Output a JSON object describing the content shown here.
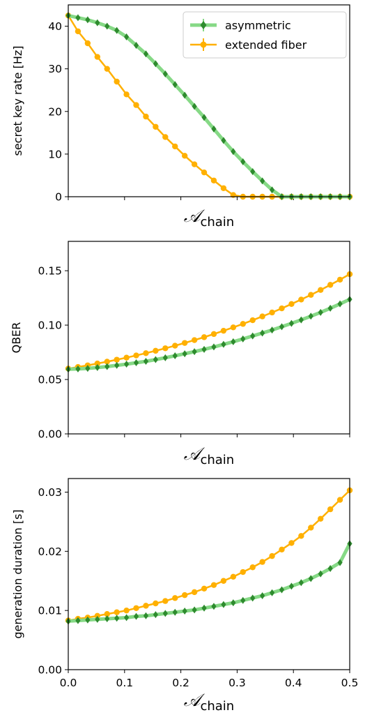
{
  "figure": {
    "colors": {
      "asymmetric_marker": "#2e8b2e",
      "asymmetric_line": "#86d986",
      "extended_fiber": "#ffb000",
      "axes": "#000000"
    }
  },
  "chart_data": [
    {
      "type": "line",
      "ylabel": "secret key rate [Hz]",
      "xlabel_symbol": "𝒜",
      "xlabel_sub": "chain",
      "xlim": [
        0.0,
        0.5
      ],
      "ylim": [
        0,
        45
      ],
      "yticks": [
        0,
        10,
        20,
        30,
        40
      ],
      "ytick_labels": [
        "0",
        "10",
        "20",
        "30",
        "40"
      ],
      "xticks": [
        0.0,
        0.1,
        0.2,
        0.3,
        0.4,
        0.5
      ],
      "xtick_labels": [],
      "legend": {
        "position": "top-right",
        "entries": [
          "asymmetric",
          "extended fiber"
        ]
      },
      "grid": false,
      "x": [
        0.0,
        0.01724,
        0.03448,
        0.05172,
        0.06897,
        0.08621,
        0.10345,
        0.12069,
        0.13793,
        0.15517,
        0.17241,
        0.18966,
        0.2069,
        0.22414,
        0.24138,
        0.25862,
        0.27586,
        0.2931,
        0.31034,
        0.32759,
        0.34483,
        0.36207,
        0.37931,
        0.39655,
        0.41379,
        0.43103,
        0.44828,
        0.46552,
        0.48276,
        0.5
      ],
      "series": [
        {
          "name": "asymmetric",
          "values": [
            42.5,
            42.0,
            41.5,
            40.8,
            40.0,
            39.0,
            37.5,
            35.5,
            33.5,
            31.2,
            28.8,
            26.3,
            23.8,
            21.2,
            18.6,
            15.9,
            13.2,
            10.6,
            8.2,
            5.9,
            3.7,
            1.6,
            0,
            0,
            0,
            0,
            0,
            0,
            0,
            0
          ]
        },
        {
          "name": "extended fiber",
          "values": [
            42.5,
            38.8,
            36.0,
            32.8,
            30.0,
            27.0,
            24.0,
            21.5,
            18.8,
            16.4,
            14.0,
            11.8,
            9.6,
            7.6,
            5.7,
            3.8,
            2.0,
            0.4,
            0,
            0,
            0,
            0,
            0,
            0,
            0,
            0,
            0,
            0,
            0,
            0
          ]
        }
      ]
    },
    {
      "type": "line",
      "ylabel": "QBER",
      "xlabel_symbol": "𝒜",
      "xlabel_sub": "chain",
      "xlim": [
        0.0,
        0.5
      ],
      "ylim": [
        0,
        0.177
      ],
      "yticks": [
        0.0,
        0.05,
        0.1,
        0.15
      ],
      "ytick_labels": [
        "0.00",
        "0.05",
        "0.10",
        "0.15"
      ],
      "xticks": [
        0.0,
        0.1,
        0.2,
        0.3,
        0.4,
        0.5
      ],
      "xtick_labels": [],
      "grid": false,
      "x": [
        0.0,
        0.01724,
        0.03448,
        0.05172,
        0.06897,
        0.08621,
        0.10345,
        0.12069,
        0.13793,
        0.15517,
        0.17241,
        0.18966,
        0.2069,
        0.22414,
        0.24138,
        0.25862,
        0.27586,
        0.2931,
        0.31034,
        0.32759,
        0.34483,
        0.36207,
        0.37931,
        0.39655,
        0.41379,
        0.43103,
        0.44828,
        0.46552,
        0.48276,
        0.5
      ],
      "series": [
        {
          "name": "asymmetric",
          "values": [
            0.0595,
            0.0597,
            0.0602,
            0.061,
            0.0619,
            0.063,
            0.0641,
            0.0654,
            0.0667,
            0.0683,
            0.07,
            0.0718,
            0.0737,
            0.0756,
            0.0777,
            0.0799,
            0.0823,
            0.0847,
            0.0873,
            0.09,
            0.0927,
            0.0955,
            0.0985,
            0.1016,
            0.1048,
            0.1082,
            0.1117,
            0.1155,
            0.1195,
            0.1237
          ]
        },
        {
          "name": "extended fiber",
          "values": [
            0.06,
            0.0615,
            0.063,
            0.0647,
            0.0664,
            0.0682,
            0.0701,
            0.0721,
            0.0742,
            0.0764,
            0.0787,
            0.0811,
            0.0836,
            0.0862,
            0.0889,
            0.0918,
            0.0948,
            0.0979,
            0.1011,
            0.1045,
            0.108,
            0.1116,
            0.1154,
            0.1194,
            0.1235,
            0.1278,
            0.1323,
            0.137,
            0.1418,
            0.1468
          ]
        }
      ]
    },
    {
      "type": "line",
      "ylabel": "generation duration [s]",
      "xlabel_symbol": "𝒜",
      "xlabel_sub": "chain",
      "xlim": [
        0.0,
        0.5
      ],
      "ylim": [
        0,
        0.0323
      ],
      "yticks": [
        0.0,
        0.01,
        0.02,
        0.03
      ],
      "ytick_labels": [
        "0.00",
        "0.01",
        "0.02",
        "0.03"
      ],
      "xticks": [
        0.0,
        0.1,
        0.2,
        0.3,
        0.4,
        0.5
      ],
      "xtick_labels": [
        "0.0",
        "0.1",
        "0.2",
        "0.3",
        "0.4",
        "0.5"
      ],
      "grid": false,
      "x": [
        0.0,
        0.01724,
        0.03448,
        0.05172,
        0.06897,
        0.08621,
        0.10345,
        0.12069,
        0.13793,
        0.15517,
        0.17241,
        0.18966,
        0.2069,
        0.22414,
        0.24138,
        0.25862,
        0.27586,
        0.2931,
        0.31034,
        0.32759,
        0.34483,
        0.36207,
        0.37931,
        0.39655,
        0.41379,
        0.43103,
        0.44828,
        0.46552,
        0.48276,
        0.5
      ],
      "series": [
        {
          "name": "asymmetric",
          "values": [
            0.0082,
            0.0083,
            0.0084,
            0.0085,
            0.0086,
            0.0087,
            0.0088,
            0.009,
            0.0091,
            0.0093,
            0.0095,
            0.0097,
            0.0099,
            0.0101,
            0.0104,
            0.0107,
            0.011,
            0.0113,
            0.0117,
            0.0121,
            0.0125,
            0.013,
            0.0135,
            0.0141,
            0.0147,
            0.0154,
            0.0162,
            0.0171,
            0.0181,
            0.0213
          ]
        },
        {
          "name": "extended fiber",
          "values": [
            0.0083,
            0.0086,
            0.0088,
            0.0091,
            0.0094,
            0.0097,
            0.01,
            0.0104,
            0.0108,
            0.0112,
            0.0116,
            0.0121,
            0.0126,
            0.0131,
            0.0137,
            0.0143,
            0.015,
            0.0157,
            0.0165,
            0.0173,
            0.0182,
            0.0192,
            0.0203,
            0.0214,
            0.0226,
            0.024,
            0.0255,
            0.0271,
            0.0287,
            0.0303
          ]
        }
      ]
    }
  ]
}
